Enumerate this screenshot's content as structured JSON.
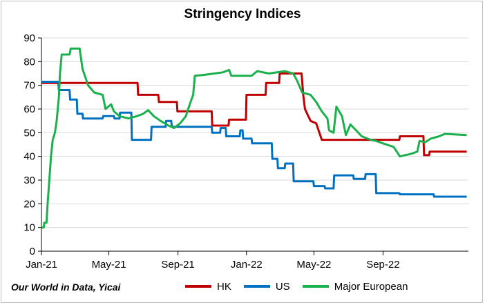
{
  "source_note": "Our World in Data, Yicai",
  "chart_data": {
    "type": "line",
    "title": "Stringency Indices",
    "xlabel": "",
    "ylabel": "",
    "ylim": [
      0,
      90
    ],
    "yticks": [
      0,
      10,
      20,
      30,
      40,
      50,
      60,
      70,
      80,
      90
    ],
    "xlim": [
      "2021-01-01",
      "2023-01-31"
    ],
    "xticks": [
      {
        "date": "2021-01-01",
        "label": "Jan-21"
      },
      {
        "date": "2021-05-01",
        "label": "May-21"
      },
      {
        "date": "2021-09-01",
        "label": "Sep-21"
      },
      {
        "date": "2022-01-01",
        "label": "Jan-22"
      },
      {
        "date": "2022-05-01",
        "label": "May-22"
      },
      {
        "date": "2022-09-01",
        "label": "Sep-22"
      }
    ],
    "grid": true,
    "legend_position": "bottom",
    "series": [
      {
        "name": "HK",
        "color": "#c00000",
        "points": [
          [
            "2021-01-01",
            71
          ],
          [
            "2021-06-21",
            71
          ],
          [
            "2021-06-22",
            66
          ],
          [
            "2021-07-28",
            66
          ],
          [
            "2021-07-29",
            63
          ],
          [
            "2021-08-30",
            63
          ],
          [
            "2021-08-31",
            59
          ],
          [
            "2021-10-31",
            59
          ],
          [
            "2021-11-01",
            53
          ],
          [
            "2021-11-30",
            53
          ],
          [
            "2021-12-01",
            55.5
          ],
          [
            "2021-12-31",
            55.5
          ],
          [
            "2022-01-01",
            66
          ],
          [
            "2022-02-04",
            66
          ],
          [
            "2022-02-05",
            71
          ],
          [
            "2022-02-28",
            71
          ],
          [
            "2022-03-01",
            75
          ],
          [
            "2022-04-09",
            75
          ],
          [
            "2022-04-12",
            66
          ],
          [
            "2022-04-15",
            60
          ],
          [
            "2022-04-25",
            55
          ],
          [
            "2022-05-05",
            54
          ],
          [
            "2022-05-15",
            47
          ],
          [
            "2022-09-30",
            47
          ],
          [
            "2022-10-01",
            48.5
          ],
          [
            "2022-11-12",
            48.5
          ],
          [
            "2022-11-13",
            40.5
          ],
          [
            "2022-11-22",
            40.5
          ],
          [
            "2022-11-23",
            42
          ],
          [
            "2023-01-28",
            42
          ]
        ]
      },
      {
        "name": "US",
        "color": "#0070c0",
        "points": [
          [
            "2021-01-01",
            71.5
          ],
          [
            "2021-01-31",
            71.5
          ],
          [
            "2021-02-01",
            68
          ],
          [
            "2021-02-20",
            68
          ],
          [
            "2021-02-21",
            64
          ],
          [
            "2021-03-05",
            64
          ],
          [
            "2021-03-06",
            58
          ],
          [
            "2021-03-15",
            58
          ],
          [
            "2021-03-16",
            56
          ],
          [
            "2021-04-20",
            56
          ],
          [
            "2021-04-21",
            57
          ],
          [
            "2021-05-10",
            57
          ],
          [
            "2021-05-11",
            56
          ],
          [
            "2021-05-20",
            56
          ],
          [
            "2021-05-21",
            58.5
          ],
          [
            "2021-06-10",
            58.5
          ],
          [
            "2021-06-11",
            47
          ],
          [
            "2021-07-15",
            47
          ],
          [
            "2021-07-16",
            52.5
          ],
          [
            "2021-08-10",
            52.5
          ],
          [
            "2021-08-11",
            55
          ],
          [
            "2021-08-20",
            55
          ],
          [
            "2021-08-21",
            52.5
          ],
          [
            "2021-10-31",
            52.5
          ],
          [
            "2021-11-01",
            50
          ],
          [
            "2021-11-15",
            50
          ],
          [
            "2021-11-16",
            52
          ],
          [
            "2021-11-25",
            52
          ],
          [
            "2021-11-26",
            48.5
          ],
          [
            "2021-12-20",
            48.5
          ],
          [
            "2021-12-21",
            51
          ],
          [
            "2021-12-25",
            51
          ],
          [
            "2021-12-26",
            47.5
          ],
          [
            "2022-01-10",
            47.5
          ],
          [
            "2022-01-11",
            45.5
          ],
          [
            "2022-02-15",
            45.5
          ],
          [
            "2022-02-16",
            39
          ],
          [
            "2022-02-25",
            39
          ],
          [
            "2022-02-26",
            35
          ],
          [
            "2022-03-10",
            35
          ],
          [
            "2022-03-11",
            37
          ],
          [
            "2022-03-25",
            37
          ],
          [
            "2022-03-26",
            29.5
          ],
          [
            "2022-04-30",
            29.5
          ],
          [
            "2022-05-01",
            27.5
          ],
          [
            "2022-05-20",
            27.5
          ],
          [
            "2022-05-21",
            26.5
          ],
          [
            "2022-06-05",
            26.5
          ],
          [
            "2022-06-06",
            32
          ],
          [
            "2022-07-10",
            32
          ],
          [
            "2022-07-11",
            30.5
          ],
          [
            "2022-07-31",
            30.5
          ],
          [
            "2022-08-01",
            32.5
          ],
          [
            "2022-08-19",
            32.5
          ],
          [
            "2022-08-20",
            24.5
          ],
          [
            "2022-09-30",
            24.5
          ],
          [
            "2022-10-01",
            24
          ],
          [
            "2022-11-30",
            24
          ],
          [
            "2022-12-01",
            23
          ],
          [
            "2023-01-28",
            23
          ]
        ]
      },
      {
        "name": "Major European",
        "color": "#1ab04c",
        "points": [
          [
            "2021-01-01",
            10
          ],
          [
            "2021-01-05",
            10
          ],
          [
            "2021-01-06",
            12
          ],
          [
            "2021-01-10",
            12
          ],
          [
            "2021-01-12",
            20
          ],
          [
            "2021-01-15",
            30
          ],
          [
            "2021-01-18",
            40
          ],
          [
            "2021-01-21",
            47
          ],
          [
            "2021-01-25",
            50
          ],
          [
            "2021-01-28",
            55
          ],
          [
            "2021-02-01",
            65
          ],
          [
            "2021-02-03",
            75
          ],
          [
            "2021-02-06",
            83
          ],
          [
            "2021-02-20",
            83
          ],
          [
            "2021-02-22",
            85.5
          ],
          [
            "2021-03-10",
            85.5
          ],
          [
            "2021-03-15",
            77
          ],
          [
            "2021-03-25",
            70
          ],
          [
            "2021-04-05",
            67
          ],
          [
            "2021-04-20",
            66
          ],
          [
            "2021-04-25",
            60
          ],
          [
            "2021-05-05",
            62
          ],
          [
            "2021-05-10",
            59
          ],
          [
            "2021-05-20",
            57
          ],
          [
            "2021-06-05",
            56
          ],
          [
            "2021-06-20",
            57
          ],
          [
            "2021-07-01",
            58
          ],
          [
            "2021-07-10",
            59.5
          ],
          [
            "2021-07-20",
            57
          ],
          [
            "2021-08-01",
            55
          ],
          [
            "2021-08-15",
            53
          ],
          [
            "2021-08-25",
            52
          ],
          [
            "2021-09-05",
            54
          ],
          [
            "2021-09-15",
            57
          ],
          [
            "2021-09-22",
            62
          ],
          [
            "2021-09-28",
            66
          ],
          [
            "2021-10-01",
            74
          ],
          [
            "2021-10-20",
            74.5
          ],
          [
            "2021-11-05",
            75
          ],
          [
            "2021-11-20",
            75.5
          ],
          [
            "2021-12-01",
            76.5
          ],
          [
            "2021-12-05",
            74
          ],
          [
            "2022-01-10",
            74
          ],
          [
            "2022-01-20",
            76
          ],
          [
            "2022-02-10",
            75
          ],
          [
            "2022-03-10",
            76
          ],
          [
            "2022-03-25",
            75
          ],
          [
            "2022-04-01",
            72
          ],
          [
            "2022-04-10",
            67
          ],
          [
            "2022-04-25",
            66
          ],
          [
            "2022-05-05",
            63
          ],
          [
            "2022-05-15",
            59
          ],
          [
            "2022-05-25",
            56
          ],
          [
            "2022-05-28",
            51
          ],
          [
            "2022-06-05",
            50
          ],
          [
            "2022-06-10",
            61
          ],
          [
            "2022-06-20",
            57
          ],
          [
            "2022-06-27",
            49
          ],
          [
            "2022-07-05",
            53.5
          ],
          [
            "2022-07-15",
            51
          ],
          [
            "2022-07-25",
            48.5
          ],
          [
            "2022-08-10",
            47
          ],
          [
            "2022-08-20",
            46.5
          ],
          [
            "2022-09-01",
            45.5
          ],
          [
            "2022-09-20",
            44
          ],
          [
            "2022-10-01",
            40
          ],
          [
            "2022-10-10",
            40.5
          ],
          [
            "2022-10-20",
            41
          ],
          [
            "2022-11-01",
            42
          ],
          [
            "2022-11-05",
            46.5
          ],
          [
            "2022-11-15",
            46
          ],
          [
            "2022-11-25",
            47.5
          ],
          [
            "2022-12-10",
            48.5
          ],
          [
            "2022-12-20",
            49.5
          ],
          [
            "2023-01-28",
            49
          ]
        ]
      }
    ]
  }
}
